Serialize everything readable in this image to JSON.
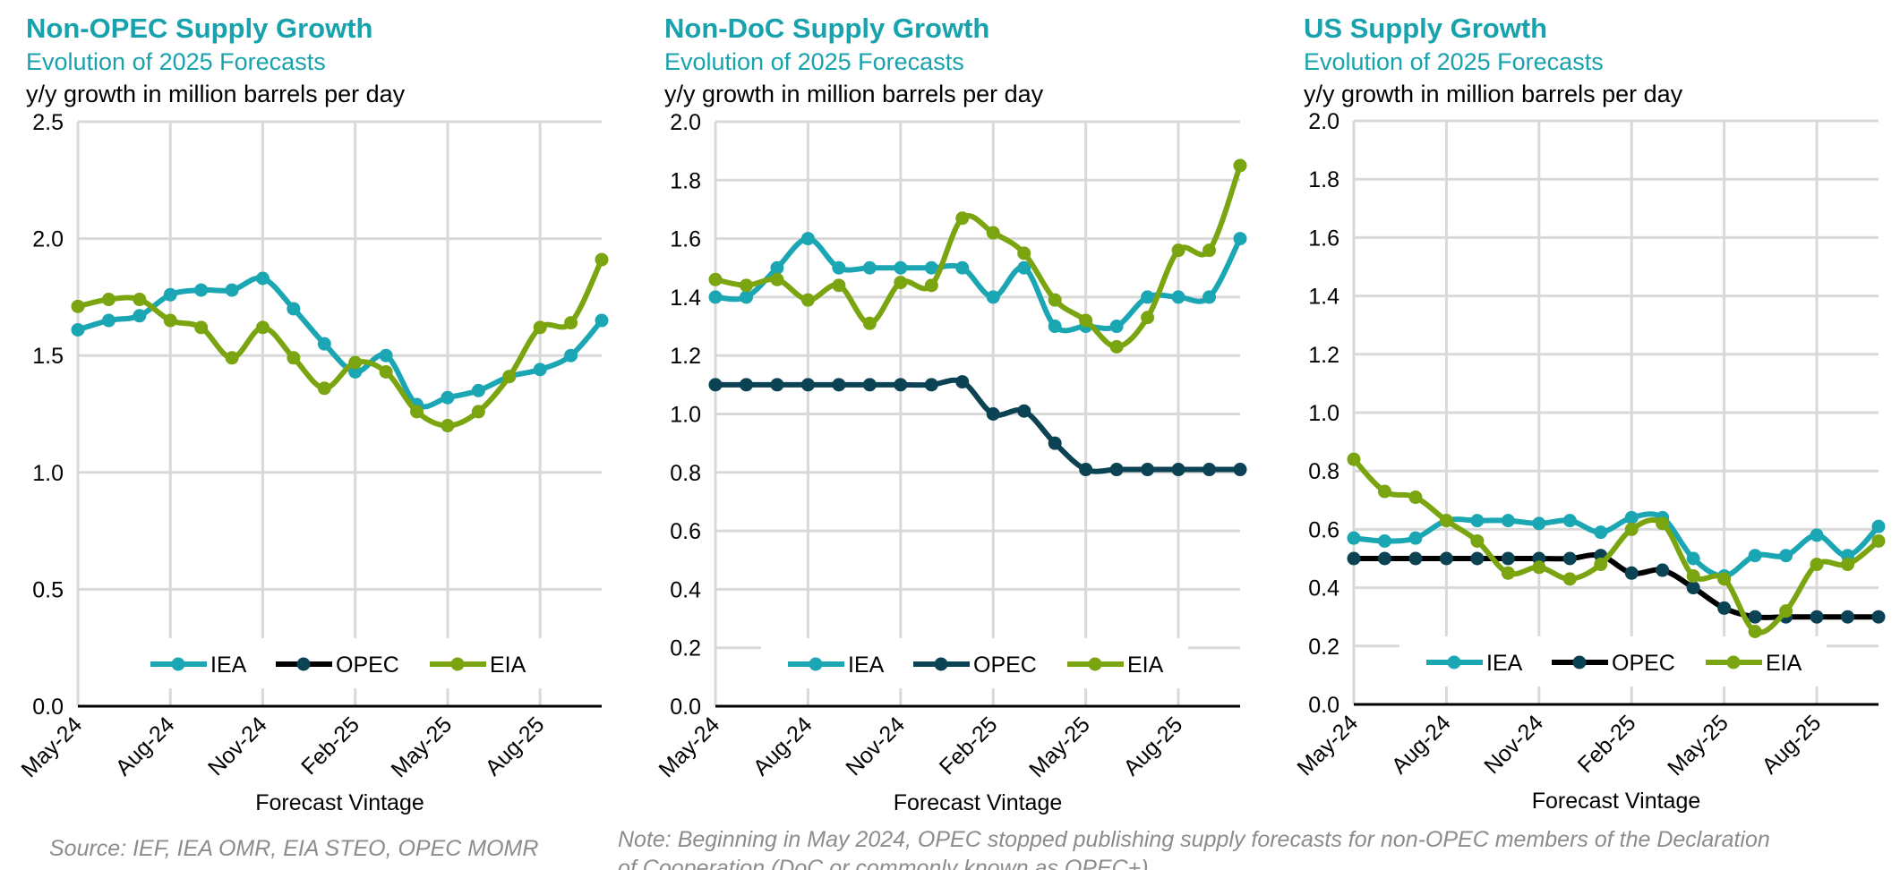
{
  "footer": {
    "source": "Source: IEF, IEA OMR, EIA STEO, OPEC MOMR",
    "note_line1": "Note: Beginning in May 2024, OPEC stopped publishing supply forecasts for non-OPEC members of the Declaration",
    "note_line2": "of Cooperation (DoC or commonly known as OPEC+)"
  },
  "colors": {
    "title": "#17a2ad",
    "IEA": "#1ba6b4",
    "OPEC": "#0b4254",
    "EIA": "#7aa510",
    "grid": "#d9d9d9"
  },
  "chart_data": [
    {
      "type": "line",
      "title": "Non-OPEC Supply Growth",
      "subtitle": "Evolution of 2025 Forecasts",
      "ylabel": "y/y growth in million barrels per day",
      "xlabel": "Forecast Vintage",
      "x": [
        "May-24",
        "Jun-24",
        "Jul-24",
        "Aug-24",
        "Sep-24",
        "Oct-24",
        "Nov-24",
        "Dec-24",
        "Jan-25",
        "Feb-25",
        "Mar-25",
        "Apr-25",
        "May-25",
        "Jun-25",
        "Jul-25",
        "Aug-25",
        "Sep-25",
        "Oct-25"
      ],
      "xtick_labels": [
        "May-24",
        "Aug-24",
        "Nov-24",
        "Feb-25",
        "May-25",
        "Aug-25"
      ],
      "ylim": [
        0,
        2.5
      ],
      "yticks": [
        "0.0",
        "0.5",
        "1.0",
        "1.5",
        "2.0",
        "2.5"
      ],
      "grid": true,
      "legend_placement": "bottom-center",
      "legend": [
        "IEA",
        "OPEC",
        "EIA"
      ],
      "opec_legend_line_color": "#000000",
      "series": [
        {
          "name": "IEA",
          "values": [
            1.61,
            1.65,
            1.67,
            1.76,
            1.78,
            1.78,
            1.83,
            1.7,
            1.55,
            1.43,
            1.5,
            1.29,
            1.32,
            1.35,
            1.41,
            1.44,
            1.5,
            1.65
          ]
        },
        {
          "name": "EIA",
          "values": [
            1.71,
            1.74,
            1.74,
            1.65,
            1.62,
            1.49,
            1.62,
            1.49,
            1.36,
            1.47,
            1.43,
            1.26,
            1.2,
            1.26,
            1.41,
            1.62,
            1.64,
            1.91
          ]
        }
      ]
    },
    {
      "type": "line",
      "title": "Non-DoC Supply Growth",
      "subtitle": "Evolution of 2025 Forecasts",
      "ylabel": "y/y growth in million barrels per day",
      "xlabel": "Forecast Vintage",
      "x": [
        "May-24",
        "Jun-24",
        "Jul-24",
        "Aug-24",
        "Sep-24",
        "Oct-24",
        "Nov-24",
        "Dec-24",
        "Jan-25",
        "Feb-25",
        "Mar-25",
        "Apr-25",
        "May-25",
        "Jun-25",
        "Jul-25",
        "Aug-25",
        "Sep-25",
        "Oct-25"
      ],
      "xtick_labels": [
        "May-24",
        "Aug-24",
        "Nov-24",
        "Feb-25",
        "May-25",
        "Aug-25"
      ],
      "ylim": [
        0,
        2.0
      ],
      "yticks": [
        "0.0",
        "0.2",
        "0.4",
        "0.6",
        "0.8",
        "1.0",
        "1.2",
        "1.4",
        "1.6",
        "1.8",
        "2.0"
      ],
      "grid": true,
      "legend_placement": "bottom-center",
      "legend": [
        "IEA",
        "OPEC",
        "EIA"
      ],
      "opec_legend_line_color": "#0b4254",
      "series": [
        {
          "name": "IEA",
          "values": [
            1.4,
            1.4,
            1.5,
            1.6,
            1.5,
            1.5,
            1.5,
            1.5,
            1.5,
            1.4,
            1.5,
            1.3,
            1.3,
            1.3,
            1.4,
            1.4,
            1.4,
            1.6
          ]
        },
        {
          "name": "OPEC",
          "values": [
            1.1,
            1.1,
            1.1,
            1.1,
            1.1,
            1.1,
            1.1,
            1.1,
            1.11,
            1.0,
            1.01,
            0.9,
            0.81,
            0.81,
            0.81,
            0.81,
            0.81,
            0.81
          ]
        },
        {
          "name": "EIA",
          "values": [
            1.46,
            1.44,
            1.46,
            1.39,
            1.44,
            1.31,
            1.45,
            1.44,
            1.67,
            1.62,
            1.55,
            1.39,
            1.32,
            1.23,
            1.33,
            1.56,
            1.56,
            1.85
          ]
        }
      ]
    },
    {
      "type": "line",
      "title": "US Supply Growth",
      "subtitle": "Evolution of 2025 Forecasts",
      "ylabel": "y/y growth in million barrels per day",
      "xlabel": "Forecast Vintage",
      "x": [
        "May-24",
        "Jun-24",
        "Jul-24",
        "Aug-24",
        "Sep-24",
        "Oct-24",
        "Nov-24",
        "Dec-24",
        "Jan-25",
        "Feb-25",
        "Mar-25",
        "Apr-25",
        "May-25",
        "Jun-25",
        "Jul-25",
        "Aug-25",
        "Sep-25",
        "Oct-25"
      ],
      "xtick_labels": [
        "May-24",
        "Aug-24",
        "Nov-24",
        "Feb-25",
        "May-25",
        "Aug-25"
      ],
      "ylim": [
        0,
        2.0
      ],
      "yticks": [
        "0.0",
        "0.2",
        "0.4",
        "0.6",
        "0.8",
        "1.0",
        "1.2",
        "1.4",
        "1.6",
        "1.8",
        "2.0"
      ],
      "grid": true,
      "legend_placement": "bottom-center",
      "legend": [
        "IEA",
        "OPEC",
        "EIA"
      ],
      "opec_legend_line_color": "#000000",
      "series": [
        {
          "name": "IEA",
          "values": [
            0.57,
            0.56,
            0.57,
            0.63,
            0.63,
            0.63,
            0.62,
            0.63,
            0.59,
            0.64,
            0.64,
            0.5,
            0.44,
            0.51,
            0.51,
            0.58,
            0.51,
            0.61
          ]
        },
        {
          "name": "OPEC",
          "values": [
            0.5,
            0.5,
            0.5,
            0.5,
            0.5,
            0.5,
            0.5,
            0.5,
            0.51,
            0.45,
            0.46,
            0.4,
            0.33,
            0.3,
            0.3,
            0.3,
            0.3,
            0.3
          ],
          "line_color": "#000000"
        },
        {
          "name": "EIA",
          "values": [
            0.84,
            0.73,
            0.71,
            0.63,
            0.56,
            0.45,
            0.47,
            0.43,
            0.48,
            0.6,
            0.62,
            0.44,
            0.43,
            0.25,
            0.32,
            0.48,
            0.48,
            0.56
          ]
        }
      ]
    }
  ]
}
